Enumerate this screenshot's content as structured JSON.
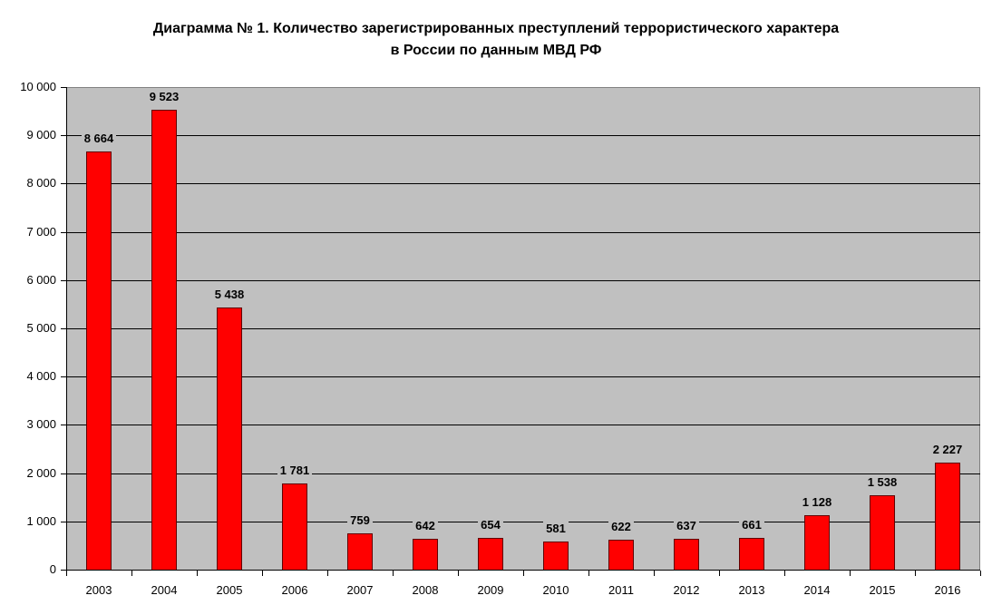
{
  "chart_data": {
    "type": "bar",
    "title": "Диаграмма № 1. Количество зарегистрированных преступлений террористического характера в России по данным МВД РФ",
    "title_lines": [
      "Диаграмма № 1. Количество зарегистрированных преступлений террористического характера",
      "в России по данным МВД РФ"
    ],
    "xlabel": "",
    "ylabel": "",
    "ylim": [
      0,
      10000
    ],
    "yticks": [
      0,
      1000,
      2000,
      3000,
      4000,
      5000,
      6000,
      7000,
      8000,
      9000,
      10000
    ],
    "ytick_labels": [
      "0",
      "1 000",
      "2 000",
      "3 000",
      "4 000",
      "5 000",
      "6 000",
      "7 000",
      "8 000",
      "9 000",
      "10 000"
    ],
    "categories": [
      "2003",
      "2004",
      "2005",
      "2006",
      "2007",
      "2008",
      "2009",
      "2010",
      "2011",
      "2012",
      "2013",
      "2014",
      "2015",
      "2016"
    ],
    "values": [
      8664,
      9523,
      5438,
      1781,
      759,
      642,
      654,
      581,
      622,
      637,
      661,
      1128,
      1538,
      2227
    ],
    "value_labels": [
      "8 664",
      "9 523",
      "5 438",
      "1 781",
      "759",
      "642",
      "654",
      "581",
      "622",
      "637",
      "661",
      "1 128",
      "1 538",
      "2 227"
    ],
    "grid": true,
    "legend": null,
    "colors": {
      "bar": "#ff0000",
      "bar_border": "#600000",
      "plot_bg": "#c0c0c0",
      "gridline": "#000000"
    }
  }
}
